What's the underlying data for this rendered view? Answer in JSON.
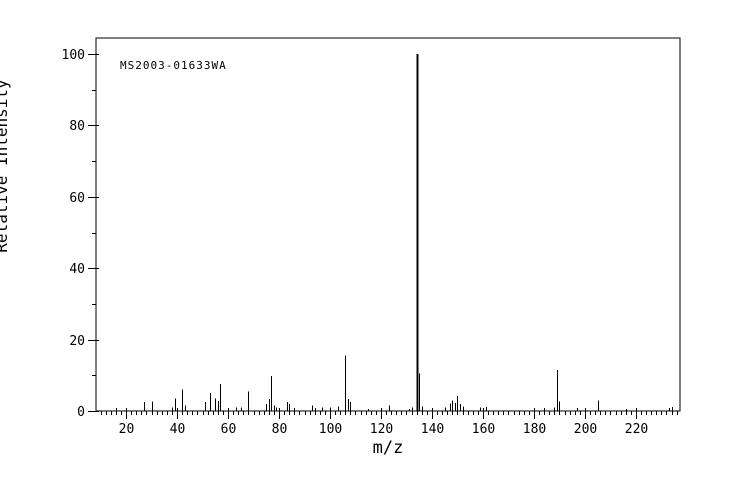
{
  "figure": {
    "background_color": "#ffffff",
    "line_color": "#000000",
    "annotation_label": "MS2003-01633WA"
  },
  "chart_data": {
    "type": "bar",
    "subtype": "mass-spectrum-stick-plot",
    "annotation": "MS2003-01633WA",
    "xlabel": "m/z",
    "ylabel": "Relative Intensity",
    "xlim": [
      8.2,
      237.3
    ],
    "ylim": [
      0,
      104.5
    ],
    "x_major_ticks": [
      20,
      40,
      60,
      80,
      100,
      120,
      140,
      160,
      180,
      200,
      220
    ],
    "x_minor_step": 2,
    "y_major_ticks": [
      0,
      20,
      40,
      60,
      80,
      100
    ],
    "y_minor_ticks": [
      10,
      30,
      50,
      70,
      90
    ],
    "grid": false,
    "legend": false,
    "base_peak_mz": 134,
    "peaks": [
      [
        16,
        0.8
      ],
      [
        27,
        2.5
      ],
      [
        30,
        2.7
      ],
      [
        38,
        1.0
      ],
      [
        39,
        3.5
      ],
      [
        42,
        6.0
      ],
      [
        43,
        1.5
      ],
      [
        51,
        2.5
      ],
      [
        53,
        5.0
      ],
      [
        55,
        3.5
      ],
      [
        56,
        2.8
      ],
      [
        57,
        7.5
      ],
      [
        60,
        0.8
      ],
      [
        63,
        1.0
      ],
      [
        65,
        1.0
      ],
      [
        68,
        5.5
      ],
      [
        75,
        2.0
      ],
      [
        76,
        3.3
      ],
      [
        77,
        9.8
      ],
      [
        78,
        1.5
      ],
      [
        79,
        1.0
      ],
      [
        83,
        2.5
      ],
      [
        84,
        2.0
      ],
      [
        86,
        0.8
      ],
      [
        93,
        1.5
      ],
      [
        94,
        0.8
      ],
      [
        97,
        1.0
      ],
      [
        100,
        1.0
      ],
      [
        103,
        1.2
      ],
      [
        106,
        15.5
      ],
      [
        107,
        3.3
      ],
      [
        108,
        2.5
      ],
      [
        115,
        0.6
      ],
      [
        123,
        1.5
      ],
      [
        131,
        0.6
      ],
      [
        132,
        1.0
      ],
      [
        134,
        100
      ],
      [
        135,
        10.5
      ],
      [
        136,
        1.2
      ],
      [
        145,
        1.0
      ],
      [
        147,
        2.1
      ],
      [
        148,
        2.9
      ],
      [
        149,
        2.3
      ],
      [
        150,
        4.2
      ],
      [
        151,
        2.0
      ],
      [
        152,
        1.2
      ],
      [
        159,
        1.0
      ],
      [
        161,
        1.1
      ],
      [
        184,
        0.8
      ],
      [
        188,
        1.0
      ],
      [
        189,
        11.5
      ],
      [
        190,
        2.6
      ],
      [
        197,
        0.9
      ],
      [
        205,
        3.0
      ],
      [
        216,
        0.6
      ],
      [
        233,
        0.9
      ],
      [
        234,
        1.1
      ]
    ]
  }
}
